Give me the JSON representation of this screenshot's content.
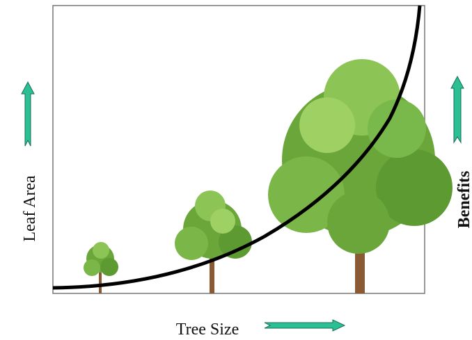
{
  "axes": {
    "x_label": "Tree Size",
    "y_label_left": "Leaf Area",
    "y_label_right": "Benefits"
  }
}
